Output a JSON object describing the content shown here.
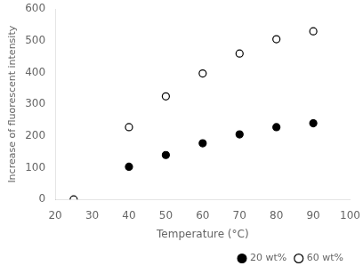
{
  "chart_data": {
    "type": "scatter",
    "x_label": "Temperature (°C)",
    "y_label": "Increase of fluorescent intensity",
    "series": [
      {
        "name": "20 wt%",
        "color": "#000000",
        "marker": "filled_circle",
        "x": [
          40,
          50,
          60,
          70,
          80,
          90
        ],
        "values": [
          103,
          140,
          177,
          205,
          228,
          240
        ]
      },
      {
        "name": "60 wt%",
        "color": "#000000",
        "marker": "open_circle",
        "x": [
          25,
          40,
          50,
          60,
          70,
          80,
          90
        ],
        "values": [
          0,
          228,
          325,
          397,
          460,
          505,
          530
        ]
      }
    ],
    "xlim": [
      20,
      100
    ],
    "ylim": [
      0,
      600
    ],
    "xticks": [
      20,
      30,
      40,
      50,
      60,
      70,
      80,
      90,
      100
    ],
    "yticks": [
      0,
      100,
      200,
      300,
      400,
      500,
      600
    ],
    "legend": "lower right",
    "grid": false
  }
}
